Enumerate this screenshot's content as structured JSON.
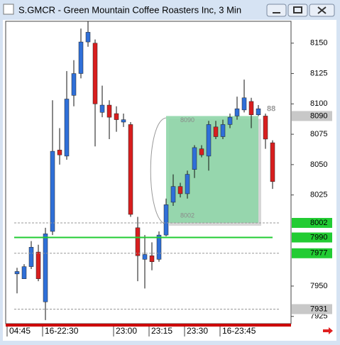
{
  "chart_data": {
    "type": "candlestick",
    "title": "S.GMCR - Green Mountain Coffee Roasters Inc, 3 Min",
    "categories": [
      "04:45",
      null,
      null,
      null,
      null,
      "16-22:30",
      null,
      null,
      null,
      null,
      null,
      null,
      null,
      null,
      null,
      "23:00",
      null,
      null,
      null,
      null,
      "23:15",
      null,
      null,
      null,
      null,
      "23:30",
      null,
      null,
      null,
      null,
      "16-23:45",
      null,
      null,
      null,
      null,
      null,
      null,
      null
    ],
    "open": [
      null,
      7960,
      7956,
      7966,
      7978,
      7937,
      7995,
      8062,
      8057,
      8107,
      8125,
      8151,
      8150,
      8093,
      8099,
      8092,
      8085,
      8083,
      7998,
      7972,
      7975,
      7972,
      7992,
      8019,
      8032,
      8026,
      8046,
      8063,
      8057,
      8081,
      8073,
      8083,
      8090,
      8095,
      8102,
      8091,
      8090,
      8068
    ],
    "high": [
      null,
      7965,
      7968,
      7987,
      7984,
      7998,
      8103,
      8080,
      8127,
      8136,
      8162,
      8168,
      8153,
      8115,
      8103,
      8098,
      8092,
      8085,
      8007,
      7992,
      7986,
      7995,
      8022,
      8042,
      8035,
      8045,
      8066,
      8066,
      8086,
      8086,
      8087,
      8092,
      8106,
      8120,
      8105,
      8099,
      8092,
      8070
    ],
    "low": [
      null,
      7944,
      7956,
      7964,
      7954,
      7922,
      7992,
      8050,
      8054,
      8098,
      8121,
      8147,
      8065,
      8089,
      8071,
      8077,
      8081,
      8007,
      7954,
      7948,
      7963,
      7970,
      7991,
      8016,
      8023,
      8022,
      8039,
      8056,
      8045,
      8071,
      8071,
      8080,
      8087,
      8093,
      8080,
      8090,
      8063,
      8030
    ],
    "close": [
      null,
      7962,
      7966,
      7982,
      7956,
      7993,
      8061,
      8058,
      8104,
      8125,
      8151,
      8159,
      8100,
      8099,
      8089,
      8087,
      8087,
      8009,
      7975,
      7976,
      7970,
      7992,
      8017,
      8032,
      8026,
      8042,
      8064,
      8058,
      8083,
      8073,
      8083,
      8089,
      8096,
      8105,
      8091,
      8096,
      8071,
      8036
    ],
    "up_color": "#2f6fd8",
    "down_color": "#d81e1e",
    "ylim": [
      7919,
      8168
    ],
    "yticks": [
      8150,
      8125,
      8100,
      8075,
      8050,
      8025,
      7950,
      7925
    ],
    "levels": [
      {
        "value": 8090,
        "color": "#c8c8c8",
        "line": "none"
      },
      {
        "value": 8002,
        "color": "#22cc33",
        "line": "dashed"
      },
      {
        "value": 7990,
        "color": "#22cc33",
        "line": "solid"
      },
      {
        "value": 7977,
        "color": "#22cc33",
        "line": "dashed"
      },
      {
        "value": 7931,
        "color": "#c8c8c8",
        "line": "dashed"
      }
    ],
    "box": {
      "low": 8002,
      "high": 8090,
      "color": "#8fd6a8"
    },
    "annotation": "88"
  }
}
